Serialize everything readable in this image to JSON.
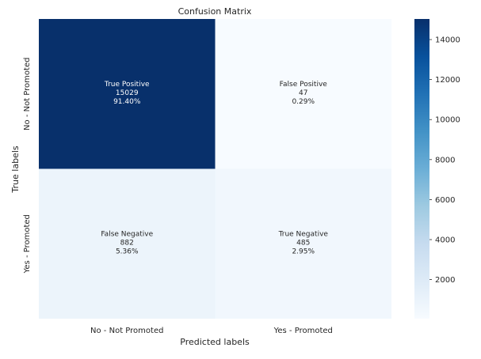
{
  "chart_data": {
    "type": "heatmap",
    "title": "Confusion Matrix",
    "xlabel": "Predicted labels",
    "ylabel": "True labels",
    "x_categories": [
      "No - Not Promoted",
      "Yes - Promoted"
    ],
    "y_categories": [
      "No - Not Promoted",
      "Yes - Promoted"
    ],
    "cells": [
      [
        {
          "label": "True Positive",
          "count": 15029,
          "percent": "91.40%"
        },
        {
          "label": "False Positive",
          "count": 47,
          "percent": "0.29%"
        }
      ],
      [
        {
          "label": "False Negative",
          "count": 882,
          "percent": "5.36%"
        },
        {
          "label": "True Negative",
          "count": 485,
          "percent": "2.95%"
        }
      ]
    ],
    "colormap": "Blues",
    "colorbar": {
      "range": [
        47,
        15029
      ],
      "ticks": [
        2000,
        4000,
        6000,
        8000,
        10000,
        12000,
        14000
      ]
    },
    "grid": false
  }
}
